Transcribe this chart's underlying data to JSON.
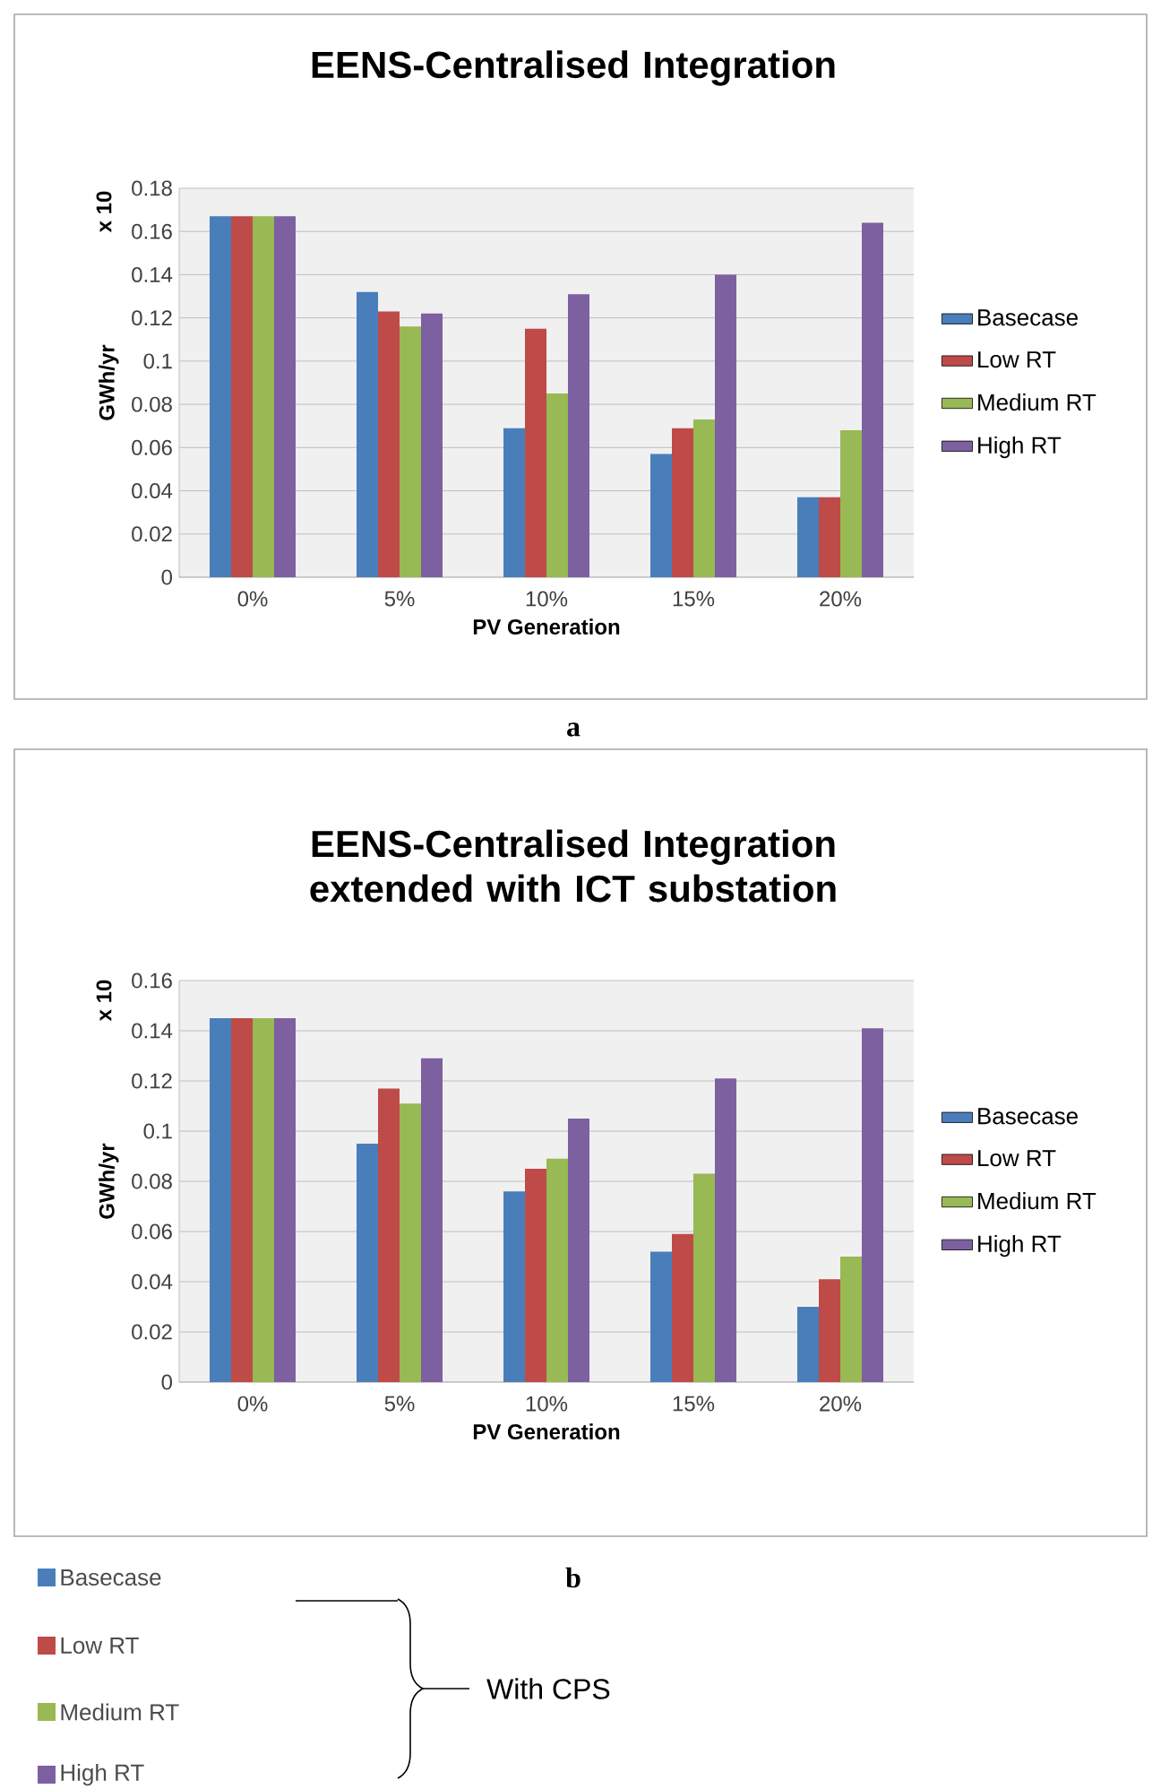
{
  "chart_data": [
    {
      "type": "bar",
      "title": "EENS-Centralised Integration",
      "xlabel": "PV Generation",
      "ylabel": "GWh/yr",
      "categories": [
        "0%",
        "5%",
        "10%",
        "15%",
        "20%"
      ],
      "series": [
        {
          "name": "Basecase",
          "color": "#4a7ebb",
          "values": [
            0.167,
            0.132,
            0.069,
            0.057,
            0.037
          ]
        },
        {
          "name": "Low RT",
          "color": "#be4b48",
          "values": [
            0.167,
            0.123,
            0.115,
            0.069,
            0.037
          ]
        },
        {
          "name": "Medium RT",
          "color": "#98b954",
          "values": [
            0.167,
            0.116,
            0.085,
            0.073,
            0.068
          ]
        },
        {
          "name": "High RT",
          "color": "#7d60a0",
          "values": [
            0.167,
            0.122,
            0.131,
            0.14,
            0.164
          ]
        }
      ],
      "ylim": [
        0,
        0.18
      ],
      "yticks": [
        0,
        0.02,
        0.04,
        0.06,
        0.08,
        0.1,
        0.12,
        0.14,
        0.16,
        0.18
      ],
      "grid": "y",
      "legend": "right",
      "annotations": [
        "x 10",
        "a"
      ]
    },
    {
      "type": "bar",
      "title": "EENS-Centralised Integration extended with ICT substation",
      "xlabel": "PV Generation",
      "ylabel": "GWh/yr",
      "categories": [
        "0%",
        "5%",
        "10%",
        "15%",
        "20%"
      ],
      "series": [
        {
          "name": "Basecase",
          "color": "#4a7ebb",
          "values": [
            0.145,
            0.095,
            0.076,
            0.052,
            0.03
          ]
        },
        {
          "name": "Low RT",
          "color": "#be4b48",
          "values": [
            0.145,
            0.117,
            0.085,
            0.059,
            0.041
          ]
        },
        {
          "name": "Medium RT",
          "color": "#98b954",
          "values": [
            0.145,
            0.111,
            0.089,
            0.083,
            0.05
          ]
        },
        {
          "name": "High RT",
          "color": "#7d60a0",
          "values": [
            0.145,
            0.129,
            0.105,
            0.121,
            0.141
          ]
        }
      ],
      "ylim": [
        0,
        0.16
      ],
      "yticks": [
        0,
        0.02,
        0.04,
        0.06,
        0.08,
        0.1,
        0.12,
        0.14,
        0.16
      ],
      "grid": "y",
      "legend": "right",
      "annotations": [
        "x 10",
        "b"
      ]
    },
    {
      "type": "other",
      "series": [
        {
          "name": "Basecase",
          "color": "#4a7ebb"
        },
        {
          "name": "Low RT",
          "color": "#be4b48"
        },
        {
          "name": "Medium RT",
          "color": "#98b954"
        },
        {
          "name": "High RT",
          "color": "#7d60a0"
        }
      ],
      "annotations": [
        "With CPS"
      ]
    }
  ]
}
